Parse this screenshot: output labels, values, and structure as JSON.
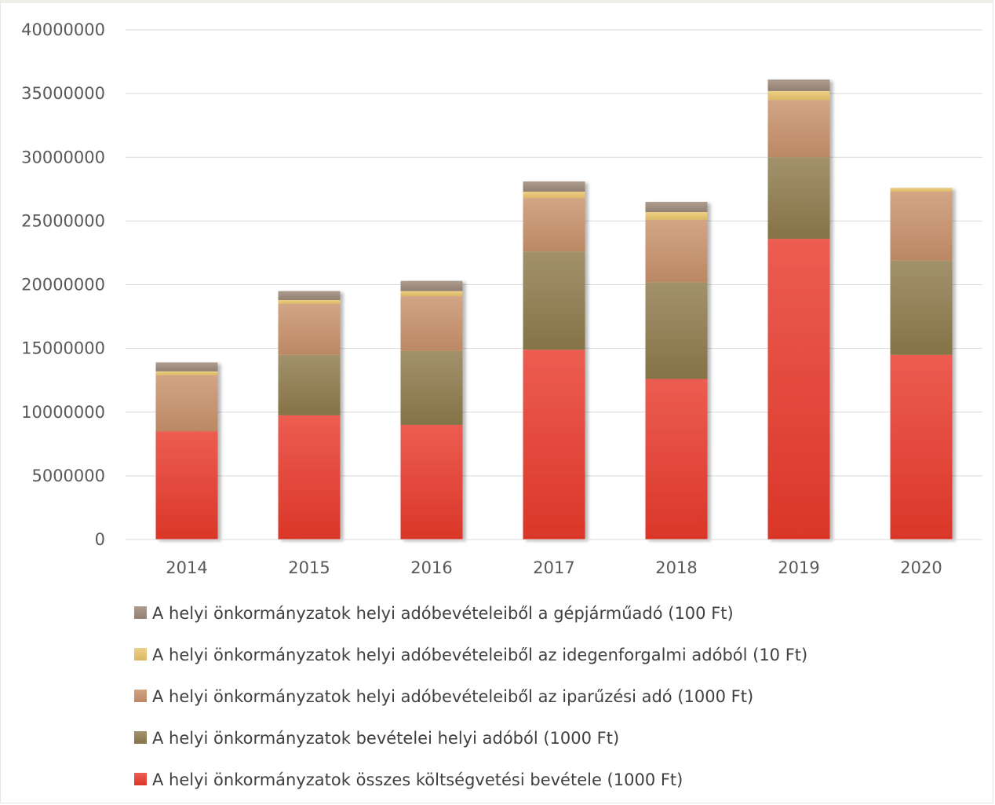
{
  "chart_data": {
    "type": "bar",
    "stacked": true,
    "title": "",
    "xlabel": "",
    "ylabel": "",
    "categories": [
      "2014",
      "2015",
      "2016",
      "2017",
      "2018",
      "2019",
      "2020"
    ],
    "ylim": [
      0,
      40000000
    ],
    "yticks": [
      0,
      5000000,
      10000000,
      15000000,
      20000000,
      25000000,
      30000000,
      35000000,
      40000000
    ],
    "grid": true,
    "legend_position": "bottom",
    "series": [
      {
        "name": "A helyi önkormányzatok összes költségvetési bevétele (1000 Ft)",
        "color": "#e8392b",
        "values": [
          8500000,
          9750000,
          9000000,
          14900000,
          12600000,
          23600000,
          14500000
        ]
      },
      {
        "name": "A helyi önkormányzatok bevételei helyi adóból (1000 Ft)",
        "color": "#8e7a4c",
        "values": [
          0,
          4750000,
          5800000,
          7700000,
          7600000,
          6400000,
          7400000
        ]
      },
      {
        "name": "A helyi önkormányzatok helyi adóbevételeiből az iparűzési adó (1000 Ft)",
        "color": "#c8916a",
        "values": [
          4400000,
          4000000,
          4300000,
          4200000,
          4900000,
          4500000,
          5400000
        ]
      },
      {
        "name": "A helyi önkormányzatok helyi adóbevételeiből az idegenforgalmi adóból (10 Ft)",
        "color": "#e9c46a",
        "values": [
          300000,
          300000,
          400000,
          500000,
          600000,
          700000,
          300000
        ]
      },
      {
        "name": "A helyi önkormányzatok helyi adóbevételeiből a gépjárműadó (100 Ft)",
        "color": "#9b8878",
        "values": [
          700000,
          700000,
          800000,
          800000,
          800000,
          900000,
          0
        ]
      }
    ]
  }
}
